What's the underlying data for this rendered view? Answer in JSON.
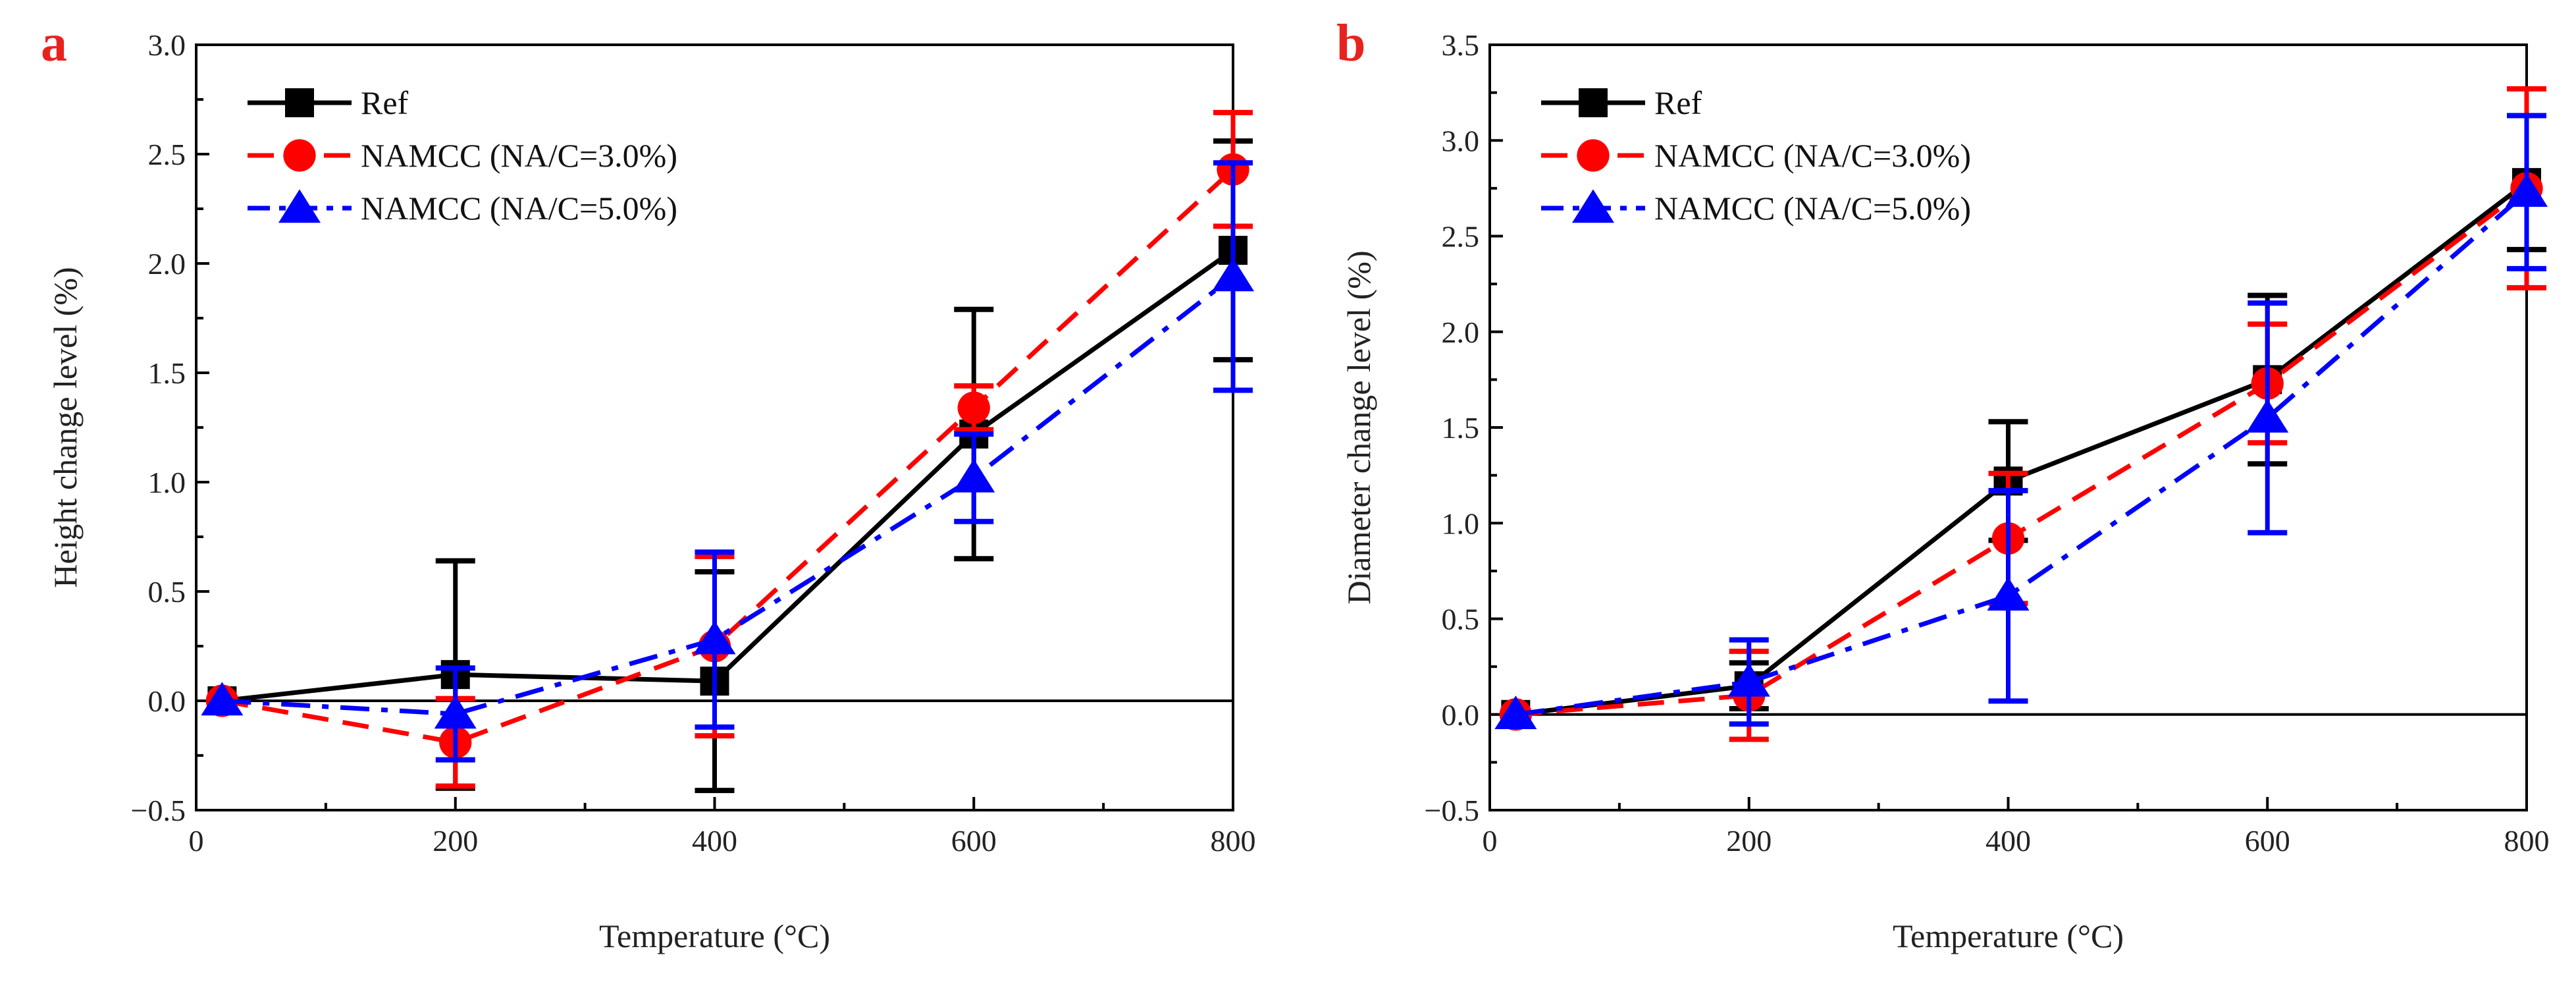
{
  "colors": {
    "ref": "#000000",
    "na3": "#ff0000",
    "na5": "#0000ff",
    "panel_letter": "#e8231f"
  },
  "chart_data": [
    {
      "type": "line",
      "panel": "a",
      "xlabel": "Temperature (°C)",
      "ylabel": "Height change level (%)",
      "xlim": [
        0,
        800
      ],
      "ylim": [
        -0.5,
        3.0
      ],
      "xticks": [
        0,
        200,
        400,
        600,
        800
      ],
      "xtick_labels": [
        "0",
        "200",
        "400",
        "600",
        "800"
      ],
      "yticks": [
        -0.5,
        0.0,
        0.5,
        1.0,
        1.5,
        2.0,
        2.5,
        3.0
      ],
      "ytick_labels": [
        "−0.5",
        "0.0",
        "0.5",
        "1.0",
        "1.5",
        "2.0",
        "2.5",
        "3.0"
      ],
      "legend_position": "top-left",
      "series": [
        {
          "name": "Ref",
          "key": "ref",
          "marker": "square",
          "dash": "solid",
          "x": [
            20,
            200,
            400,
            600,
            800
          ],
          "y": [
            0.0,
            0.12,
            0.09,
            1.22,
            2.06
          ],
          "err": [
            0.03,
            0.52,
            0.5,
            0.57,
            0.5
          ]
        },
        {
          "name": "NAMCC (NA/C=3.0%)",
          "key": "na3",
          "marker": "circle",
          "dash": "dash",
          "x": [
            20,
            200,
            400,
            600,
            800
          ],
          "y": [
            0.0,
            -0.19,
            0.25,
            1.34,
            2.43
          ],
          "err": [
            0.03,
            0.2,
            0.41,
            0.1,
            0.26
          ]
        },
        {
          "name": "NAMCC (NA/C=5.0%)",
          "key": "na5",
          "marker": "triangle",
          "dash": "dashdot",
          "x": [
            20,
            200,
            400,
            600,
            800
          ],
          "y": [
            0.0,
            -0.06,
            0.28,
            1.02,
            1.94
          ],
          "err": [
            0.03,
            0.21,
            0.4,
            0.2,
            0.52
          ]
        }
      ]
    },
    {
      "type": "line",
      "panel": "b",
      "xlabel": "Temperature (°C)",
      "ylabel": "Diameter change level (%)",
      "xlim": [
        0,
        800
      ],
      "ylim": [
        -0.5,
        3.5
      ],
      "xticks": [
        0,
        200,
        400,
        600,
        800
      ],
      "xtick_labels": [
        "0",
        "200",
        "400",
        "600",
        "800"
      ],
      "yticks": [
        -0.5,
        0.0,
        0.5,
        1.0,
        1.5,
        2.0,
        2.5,
        3.0,
        3.5
      ],
      "ytick_labels": [
        "−0.5",
        "0.0",
        "0.5",
        "1.0",
        "1.5",
        "2.0",
        "2.5",
        "3.0",
        "3.5"
      ],
      "legend_position": "top-left",
      "series": [
        {
          "name": "Ref",
          "key": "ref",
          "marker": "square",
          "dash": "solid",
          "x": [
            20,
            200,
            400,
            600,
            800
          ],
          "y": [
            0.0,
            0.15,
            1.22,
            1.75,
            2.78
          ],
          "err": [
            0.03,
            0.12,
            0.31,
            0.44,
            0.35
          ]
        },
        {
          "name": "NAMCC (NA/C=3.0%)",
          "key": "na3",
          "marker": "circle",
          "dash": "dash",
          "x": [
            20,
            200,
            400,
            600,
            800
          ],
          "y": [
            0.0,
            0.1,
            0.92,
            1.73,
            2.75
          ],
          "err": [
            0.03,
            0.23,
            0.34,
            0.31,
            0.52
          ]
        },
        {
          "name": "NAMCC (NA/C=5.0%)",
          "key": "na5",
          "marker": "triangle",
          "dash": "dashdot",
          "x": [
            20,
            200,
            400,
            600,
            800
          ],
          "y": [
            0.0,
            0.17,
            0.62,
            1.55,
            2.73
          ],
          "err": [
            0.03,
            0.22,
            0.55,
            0.6,
            0.4
          ]
        }
      ]
    }
  ]
}
